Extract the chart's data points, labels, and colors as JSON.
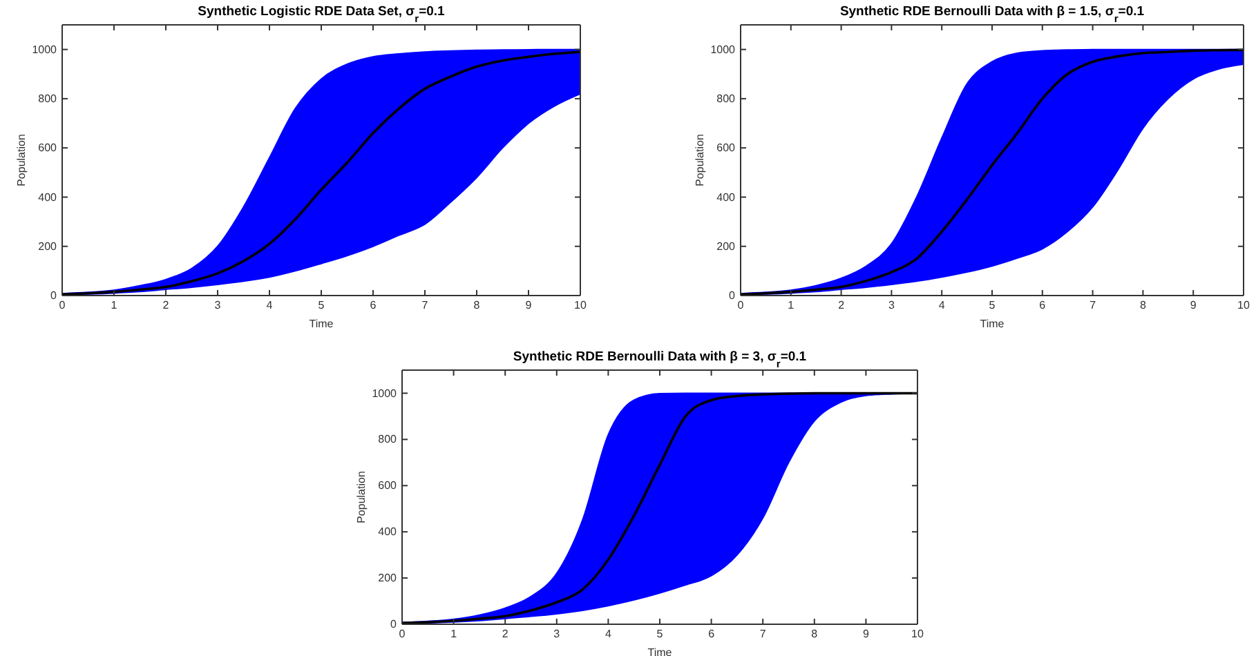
{
  "chart_data": [
    {
      "type": "line",
      "title": "Synthetic Logistic RDE Data Set, σ$_{r}$=0.1",
      "xlabel": "Time",
      "ylabel": "Population",
      "xlim": [
        0,
        10
      ],
      "ylim": [
        0,
        1100
      ],
      "xticks": [
        0,
        1,
        2,
        3,
        4,
        5,
        6,
        7,
        8,
        9,
        10
      ],
      "yticks": [
        0,
        200,
        400,
        600,
        800,
        1000
      ],
      "x": [
        0,
        0.5,
        1,
        1.5,
        2,
        2.5,
        3,
        3.5,
        4,
        4.5,
        5,
        5.5,
        6,
        6.5,
        7,
        7.5,
        8,
        8.5,
        9,
        9.5,
        10
      ],
      "series": [
        {
          "color": "#0000ff",
          "values": [
            null,
            null,
            null,
            null,
            null,
            null,
            null,
            null,
            null,
            null,
            null,
            null,
            null,
            null,
            null,
            null,
            null,
            null,
            null,
            null,
            null
          ],
          "upper": [
            8,
            13,
            22,
            40,
            65,
            110,
            200,
            360,
            560,
            760,
            880,
            940,
            970,
            982,
            990,
            994,
            997,
            998,
            999,
            1000,
            1000
          ],
          "lower": [
            3,
            6,
            10,
            16,
            25,
            34,
            45,
            58,
            75,
            100,
            130,
            162,
            200,
            245,
            290,
            380,
            480,
            600,
            700,
            770,
            820
          ]
        },
        {
          "color": "#000000",
          "values": [
            5,
            9,
            15,
            24,
            35,
            58,
            90,
            140,
            210,
            310,
            430,
            540,
            660,
            760,
            840,
            890,
            930,
            955,
            970,
            982,
            990
          ]
        }
      ]
    },
    {
      "type": "line",
      "title": "Synthetic RDE Bernoulli Data with β = 1.5, σ$_{r}$=0.1",
      "xlabel": "Time",
      "ylabel": "Population",
      "xlim": [
        0,
        10
      ],
      "ylim": [
        0,
        1100
      ],
      "xticks": [
        0,
        1,
        2,
        3,
        4,
        5,
        6,
        7,
        8,
        9,
        10
      ],
      "yticks": [
        0,
        200,
        400,
        600,
        800,
        1000
      ],
      "x": [
        0,
        0.5,
        1,
        1.5,
        2,
        2.5,
        3,
        3.5,
        4,
        4.5,
        5,
        5.5,
        6,
        6.5,
        7,
        7.5,
        8,
        8.5,
        9,
        9.5,
        10
      ],
      "series": [
        {
          "color": "#0000ff",
          "values": [
            null,
            null,
            null,
            null,
            null,
            null,
            null,
            null,
            null,
            null,
            null,
            null,
            null,
            null,
            null,
            null,
            null,
            null,
            null,
            null,
            null
          ],
          "upper": [
            8,
            13,
            22,
            40,
            70,
            120,
            210,
            400,
            640,
            860,
            950,
            985,
            995,
            998,
            1000,
            1000,
            1000,
            1000,
            1000,
            1000,
            1000
          ],
          "lower": [
            3,
            6,
            10,
            16,
            25,
            34,
            45,
            58,
            75,
            95,
            120,
            152,
            190,
            260,
            360,
            510,
            680,
            800,
            880,
            920,
            940
          ]
        },
        {
          "color": "#000000",
          "values": [
            5,
            9,
            15,
            24,
            35,
            60,
            95,
            150,
            260,
            390,
            530,
            660,
            800,
            900,
            950,
            972,
            985,
            990,
            995,
            997,
            998
          ]
        }
      ]
    },
    {
      "type": "line",
      "title": "Synthetic RDE Bernoulli Data with β = 3, σ$_{r}$=0.1",
      "xlabel": "Time",
      "ylabel": "Population",
      "xlim": [
        0,
        10
      ],
      "ylim": [
        0,
        1100
      ],
      "xticks": [
        0,
        1,
        2,
        3,
        4,
        5,
        6,
        7,
        8,
        9,
        10
      ],
      "yticks": [
        0,
        200,
        400,
        600,
        800,
        1000
      ],
      "x": [
        0,
        0.5,
        1,
        1.5,
        2,
        2.5,
        3,
        3.5,
        4,
        4.5,
        5,
        5.5,
        6,
        6.5,
        7,
        7.5,
        8,
        8.5,
        9,
        9.5,
        10
      ],
      "series": [
        {
          "color": "#0000ff",
          "values": [
            null,
            null,
            null,
            null,
            null,
            null,
            null,
            null,
            null,
            null,
            null,
            null,
            null,
            null,
            null,
            null,
            null,
            null,
            null,
            null,
            null
          ],
          "upper": [
            8,
            13,
            22,
            40,
            70,
            120,
            220,
            450,
            820,
            970,
            998,
            1000,
            1000,
            1000,
            1000,
            1000,
            1000,
            1000,
            1000,
            1000,
            1000
          ],
          "lower": [
            3,
            6,
            10,
            16,
            25,
            34,
            45,
            60,
            80,
            105,
            135,
            170,
            210,
            300,
            460,
            700,
            880,
            960,
            990,
            997,
            1000
          ]
        },
        {
          "color": "#000000",
          "values": [
            5,
            9,
            15,
            24,
            35,
            60,
            95,
            150,
            280,
            470,
            690,
            900,
            970,
            988,
            995,
            998,
            1000,
            1000,
            1000,
            1000,
            1000
          ]
        }
      ]
    }
  ]
}
